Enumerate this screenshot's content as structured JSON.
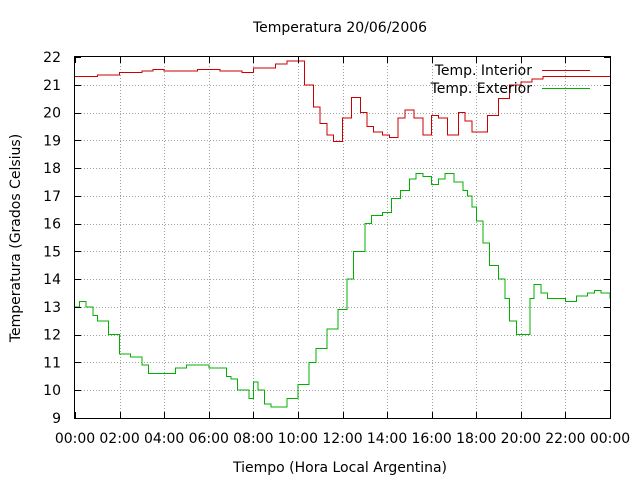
{
  "chart_data": {
    "type": "line",
    "title": "Temperatura 20/06/2006",
    "xlabel": "Tiempo (Hora Local Argentina)",
    "ylabel": "Temperatura (Grados Celsius)",
    "xlim": [
      0,
      24
    ],
    "ylim": [
      9,
      22
    ],
    "x_unit": "hours",
    "grid": true,
    "legend_position": "top-right",
    "x_tick_labels": [
      "00:00",
      "02:00",
      "04:00",
      "06:00",
      "08:00",
      "10:00",
      "12:00",
      "14:00",
      "16:00",
      "18:00",
      "20:00",
      "22:00",
      "00:00"
    ],
    "y_tick_labels": [
      "9",
      "10",
      "11",
      "12",
      "13",
      "14",
      "15",
      "16",
      "17",
      "18",
      "19",
      "20",
      "21",
      "22"
    ],
    "series": [
      {
        "name": "Temp. Interior",
        "color": "#cc0000",
        "points": [
          [
            0,
            21.3
          ],
          [
            1.0,
            21.35
          ],
          [
            2.0,
            21.45
          ],
          [
            3.0,
            21.5
          ],
          [
            3.5,
            21.55
          ],
          [
            4.0,
            21.5
          ],
          [
            5.0,
            21.5
          ],
          [
            5.5,
            21.55
          ],
          [
            6.0,
            21.55
          ],
          [
            6.5,
            21.5
          ],
          [
            7.0,
            21.5
          ],
          [
            7.5,
            21.45
          ],
          [
            8.0,
            21.6
          ],
          [
            9.0,
            21.75
          ],
          [
            9.5,
            21.85
          ],
          [
            10.0,
            21.85
          ],
          [
            10.3,
            21.0
          ],
          [
            10.7,
            20.2
          ],
          [
            11.0,
            19.6
          ],
          [
            11.3,
            19.2
          ],
          [
            11.6,
            18.95
          ],
          [
            12.0,
            19.8
          ],
          [
            12.4,
            20.55
          ],
          [
            12.8,
            20.0
          ],
          [
            13.1,
            19.5
          ],
          [
            13.4,
            19.3
          ],
          [
            13.8,
            19.2
          ],
          [
            14.1,
            19.1
          ],
          [
            14.5,
            19.8
          ],
          [
            14.8,
            20.1
          ],
          [
            15.2,
            19.8
          ],
          [
            15.6,
            19.2
          ],
          [
            16.0,
            19.9
          ],
          [
            16.3,
            19.8
          ],
          [
            16.7,
            19.2
          ],
          [
            17.2,
            20.0
          ],
          [
            17.5,
            19.7
          ],
          [
            17.8,
            19.3
          ],
          [
            18.1,
            19.3
          ],
          [
            18.5,
            19.9
          ],
          [
            19.0,
            20.5
          ],
          [
            19.5,
            21.0
          ],
          [
            20.0,
            21.1
          ],
          [
            20.5,
            21.2
          ],
          [
            21.0,
            21.3
          ],
          [
            22.0,
            21.3
          ],
          [
            23.0,
            21.3
          ],
          [
            24.0,
            21.3
          ]
        ]
      },
      {
        "name": "Temp. Exterior",
        "color": "#00b000",
        "points": [
          [
            0,
            13.0
          ],
          [
            0.2,
            13.2
          ],
          [
            0.5,
            13.0
          ],
          [
            0.8,
            12.7
          ],
          [
            1.0,
            12.5
          ],
          [
            1.5,
            12.0
          ],
          [
            2.0,
            11.3
          ],
          [
            2.5,
            11.2
          ],
          [
            3.0,
            10.9
          ],
          [
            3.3,
            10.6
          ],
          [
            3.8,
            10.6
          ],
          [
            4.2,
            10.6
          ],
          [
            4.5,
            10.8
          ],
          [
            5.0,
            10.9
          ],
          [
            5.5,
            10.9
          ],
          [
            6.0,
            10.8
          ],
          [
            6.3,
            10.8
          ],
          [
            6.8,
            10.5
          ],
          [
            7.0,
            10.4
          ],
          [
            7.3,
            10.0
          ],
          [
            7.5,
            10.0
          ],
          [
            7.8,
            9.7
          ],
          [
            8.0,
            10.3
          ],
          [
            8.2,
            10.0
          ],
          [
            8.5,
            9.5
          ],
          [
            8.8,
            9.4
          ],
          [
            9.2,
            9.4
          ],
          [
            9.5,
            9.7
          ],
          [
            10.0,
            10.2
          ],
          [
            10.5,
            11.0
          ],
          [
            10.8,
            11.5
          ],
          [
            11.3,
            12.2
          ],
          [
            11.8,
            12.9
          ],
          [
            12.2,
            14.0
          ],
          [
            12.5,
            15.0
          ],
          [
            13.0,
            16.0
          ],
          [
            13.3,
            16.3
          ],
          [
            13.8,
            16.4
          ],
          [
            14.2,
            16.9
          ],
          [
            14.6,
            17.2
          ],
          [
            15.0,
            17.6
          ],
          [
            15.3,
            17.8
          ],
          [
            15.6,
            17.7
          ],
          [
            16.0,
            17.4
          ],
          [
            16.3,
            17.6
          ],
          [
            16.6,
            17.8
          ],
          [
            17.0,
            17.5
          ],
          [
            17.4,
            17.2
          ],
          [
            17.6,
            17.0
          ],
          [
            17.8,
            16.6
          ],
          [
            18.0,
            16.1
          ],
          [
            18.3,
            15.3
          ],
          [
            18.6,
            14.5
          ],
          [
            19.0,
            14.0
          ],
          [
            19.3,
            13.3
          ],
          [
            19.5,
            12.5
          ],
          [
            19.8,
            12.0
          ],
          [
            20.2,
            12.0
          ],
          [
            20.4,
            13.3
          ],
          [
            20.6,
            13.8
          ],
          [
            20.9,
            13.5
          ],
          [
            21.2,
            13.3
          ],
          [
            21.6,
            13.3
          ],
          [
            22.0,
            13.2
          ],
          [
            22.5,
            13.4
          ],
          [
            23.0,
            13.5
          ],
          [
            23.3,
            13.6
          ],
          [
            23.6,
            13.5
          ],
          [
            24.0,
            13.3
          ]
        ]
      }
    ]
  }
}
